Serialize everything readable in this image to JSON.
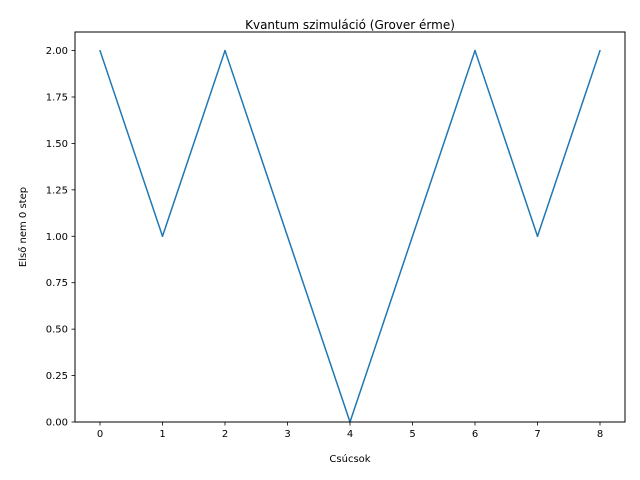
{
  "chart_data": {
    "type": "line",
    "title": "Kvantum szimuláció (Grover érme)",
    "xlabel": "Csúcsok",
    "ylabel": "Első nem 0 step",
    "x": [
      0,
      1,
      2,
      4,
      6,
      7,
      8
    ],
    "series": [
      {
        "values": [
          2,
          1,
          2,
          0,
          2,
          1,
          2
        ],
        "color": "#1f77b4"
      }
    ],
    "xticks": [
      0,
      1,
      2,
      3,
      4,
      5,
      6,
      7,
      8
    ],
    "xtick_labels": [
      "0",
      "1",
      "2",
      "3",
      "4",
      "5",
      "6",
      "7",
      "8"
    ],
    "yticks": [
      0,
      0.25,
      0.5,
      0.75,
      1,
      1.25,
      1.5,
      1.75,
      2
    ],
    "ytick_labels": [
      "0.00",
      "0.25",
      "0.50",
      "0.75",
      "1.00",
      "1.25",
      "1.50",
      "1.75",
      "2.00"
    ],
    "xlim": [
      -0.4,
      8.4
    ],
    "ylim": [
      0,
      2.1
    ],
    "grid": false,
    "legend": "none"
  }
}
